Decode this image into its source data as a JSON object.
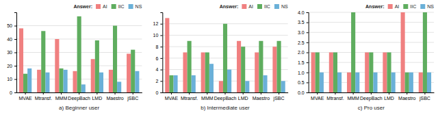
{
  "chart_data": [
    {
      "type": "bar",
      "xlabel": "a) Beginner user",
      "categories": [
        "MVAE",
        "Mtransf.",
        "MMM",
        "DeepBach",
        "LMD",
        "Maestro",
        "jSBC"
      ],
      "series": [
        {
          "name": "AI",
          "color": "#f08080",
          "values": [
            48,
            17,
            40,
            16,
            25,
            17,
            29
          ]
        },
        {
          "name": "IIC",
          "color": "#5fad5f",
          "values": [
            14,
            46,
            18,
            57,
            39,
            50,
            32
          ]
        },
        {
          "name": "NS",
          "color": "#6ab0d8",
          "values": [
            18,
            15,
            17,
            6,
            15,
            8,
            16
          ]
        }
      ],
      "ylim": [
        0,
        60
      ],
      "yticks": [
        0,
        10,
        20,
        30,
        40,
        50
      ],
      "grid": true,
      "legend": "upper right",
      "legend_title": "Answer:"
    },
    {
      "type": "bar",
      "xlabel": "b) Intermediate user",
      "categories": [
        "MVAE",
        "Mtransf.",
        "MMM",
        "DeepBach",
        "LMD",
        "Maestro",
        "jSBC"
      ],
      "series": [
        {
          "name": "AI",
          "color": "#f08080",
          "values": [
            13,
            7,
            7,
            2,
            9,
            7,
            8
          ]
        },
        {
          "name": "IIC",
          "color": "#5fad5f",
          "values": [
            3,
            9,
            7,
            12,
            8,
            9,
            9
          ]
        },
        {
          "name": "NS",
          "color": "#6ab0d8",
          "values": [
            3,
            3,
            5,
            4,
            2,
            3,
            2
          ]
        }
      ],
      "ylim": [
        0,
        14
      ],
      "yticks": [
        0,
        2,
        4,
        6,
        8,
        10,
        12
      ],
      "grid": true,
      "legend": "upper right",
      "legend_title": "Answer:"
    },
    {
      "type": "bar",
      "xlabel": "c) Pro user",
      "categories": [
        "MVAE",
        "Mtransf.",
        "MMM",
        "DeepBach",
        "LMD",
        "Maestro",
        "jSBC"
      ],
      "series": [
        {
          "name": "AI",
          "color": "#f08080",
          "values": [
            2,
            2,
            1,
            2,
            2,
            4,
            1
          ]
        },
        {
          "name": "IIC",
          "color": "#5fad5f",
          "values": [
            2,
            2,
            4,
            2,
            2,
            1,
            4
          ]
        },
        {
          "name": "NS",
          "color": "#6ab0d8",
          "values": [
            1,
            1,
            1,
            1,
            1,
            1,
            1
          ]
        }
      ],
      "ylim": [
        0.0,
        4.0
      ],
      "yticks": [
        {
          "value": 0.0,
          "label": "0.0"
        },
        0.5,
        {
          "value": 1.0,
          "label": "1.0"
        },
        1.5,
        {
          "value": 2.0,
          "label": "2.0"
        },
        2.5,
        {
          "value": 3.0,
          "label": "3.0"
        },
        3.5,
        {
          "value": 4.0,
          "label": "4.0"
        }
      ],
      "grid": true,
      "legend": "upper right",
      "legend_title": "Answer:"
    }
  ]
}
